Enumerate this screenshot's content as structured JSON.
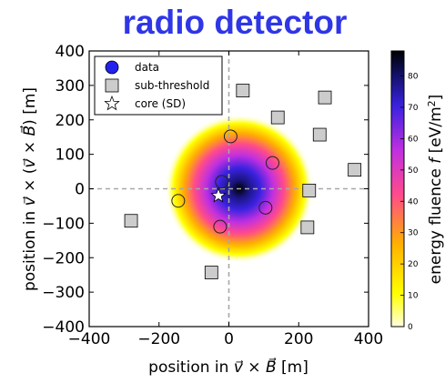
{
  "chart_data": {
    "type": "scatter",
    "title": "radio detector",
    "xlabel": "position in v⃗ × B⃗ [m]",
    "ylabel": "position in v⃗ × (v⃗ × B⃗) [m]",
    "xlim": [
      -400,
      400
    ],
    "ylim": [
      -400,
      400
    ],
    "xticks": [
      -400,
      -200,
      0,
      200,
      400
    ],
    "yticks": [
      -400,
      -300,
      -200,
      -100,
      0,
      100,
      200,
      300,
      400
    ],
    "xtick_labels": [
      "−400",
      "−200",
      "0",
      "200",
      "400"
    ],
    "ytick_labels": [
      "−400",
      "−300",
      "−200",
      "−100",
      "0",
      "100",
      "200",
      "300",
      "400"
    ],
    "grid": false,
    "crosshair_lines": {
      "x": 0,
      "y": 0,
      "style": "dashed",
      "color": "#a8a8a8"
    },
    "footprint": {
      "type": "heatmap",
      "description_center": [
        30,
        0
      ],
      "peak_value": 86,
      "colormap": [
        "#ffffe0",
        "#ffff00",
        "#ffb000",
        "#ff4090",
        "#c830e0",
        "#3a22e0",
        "#000000"
      ]
    },
    "colorbar": {
      "label": "energy fluence f [eV/m²]",
      "min": 0,
      "max": 88,
      "ticks": [
        0,
        10,
        20,
        30,
        40,
        50,
        60,
        70,
        80
      ],
      "tick_labels": [
        "0",
        "10",
        "20",
        "30",
        "40",
        "50",
        "60",
        "70",
        "80"
      ]
    },
    "legend": {
      "placement": "top-left",
      "entries": [
        "data",
        "sub-threshold",
        "core (SD)"
      ]
    },
    "series": [
      {
        "name": "data",
        "marker": "circle",
        "points": [
          {
            "x": 5,
            "y": 152,
            "value": 8
          },
          {
            "x": 125,
            "y": 75,
            "value": 12
          },
          {
            "x": -20,
            "y": 20,
            "value": 55
          },
          {
            "x": -145,
            "y": -35,
            "value": 6
          },
          {
            "x": 105,
            "y": -55,
            "value": 18
          },
          {
            "x": -25,
            "y": -110,
            "value": 10
          }
        ]
      },
      {
        "name": "sub-threshold",
        "marker": "square",
        "color": "#cccccc",
        "points": [
          {
            "x": 40,
            "y": 285
          },
          {
            "x": 275,
            "y": 265
          },
          {
            "x": 140,
            "y": 207
          },
          {
            "x": 260,
            "y": 157
          },
          {
            "x": 360,
            "y": 55
          },
          {
            "x": 230,
            "y": -5
          },
          {
            "x": -280,
            "y": -93
          },
          {
            "x": 225,
            "y": -112
          },
          {
            "x": -50,
            "y": -243
          }
        ]
      },
      {
        "name": "core (SD)",
        "marker": "star",
        "color": "#ffffff",
        "points": [
          {
            "x": -30,
            "y": -20
          }
        ]
      }
    ]
  }
}
